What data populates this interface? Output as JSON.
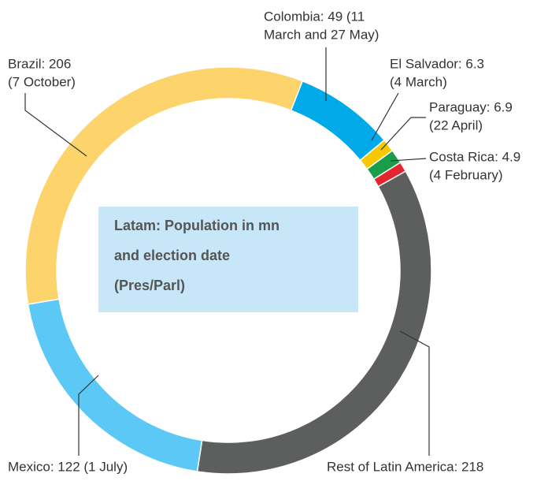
{
  "chart_data": {
    "type": "donut",
    "title": [
      "Latam: Population in mn",
      "and election date",
      "(Pres/Parl)"
    ],
    "values": [
      49,
      6.3,
      6.9,
      4.9,
      218,
      122,
      206
    ],
    "value_labels": [
      [
        "Colombia: 49 (11",
        "March and 27 May)"
      ],
      [
        "El Salvador: 6.3",
        "(4 March)"
      ],
      [
        "Paraguay: 6.9",
        "(22 April)"
      ],
      [
        "Costa Rica: 4.9",
        "(4 February)"
      ],
      [
        "Rest of Latin America: 218"
      ],
      [
        "Mexico: 122 (1 July)"
      ],
      [
        "Brazil: 206",
        "(7 October)"
      ]
    ],
    "colors": [
      "#00a9e8",
      "#f6c800",
      "#1a9d4a",
      "#e3262d",
      "#5c5f5e",
      "#5bc8f5",
      "#fdd46c"
    ]
  }
}
